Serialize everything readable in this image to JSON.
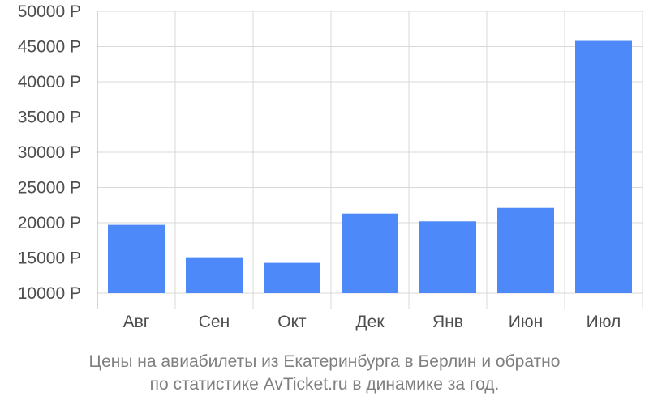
{
  "chart_data": {
    "type": "bar",
    "categories": [
      "Авг",
      "Сен",
      "Окт",
      "Дек",
      "Янв",
      "Июн",
      "Июл"
    ],
    "values": [
      19700,
      15100,
      14300,
      21300,
      20200,
      22100,
      45800
    ],
    "ylim": [
      10000,
      50000
    ],
    "yticks": [
      10000,
      15000,
      20000,
      25000,
      30000,
      35000,
      40000,
      45000,
      50000
    ],
    "ytick_suffix": " Р",
    "grid": true,
    "legend": "none",
    "bar_color": "#4d89f9",
    "grid_color": "#d9d9d9",
    "axis_color": "#aaaaaa",
    "tick_label_color": "#4d4d4d"
  },
  "caption": {
    "line1": "Цены на авиабилеты из Екатеринбурга в Берлин и обратно",
    "line2": "по статистике AvTicket.ru в динамике за год."
  }
}
